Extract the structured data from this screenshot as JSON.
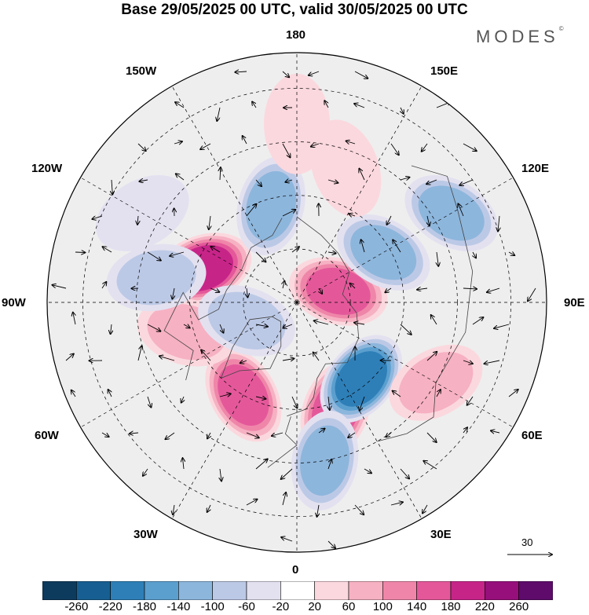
{
  "title": "Base 29/05/2025 00 UTC, valid 30/05/2025 00 UTC",
  "brand": {
    "name": "MODES",
    "mark": "©"
  },
  "map": {
    "projection": "north-polar-stereographic",
    "longitude_labels": {
      "top": "180",
      "top_right": "150E",
      "upper_right": "120E",
      "right": "90E",
      "lower_right": "60E",
      "bottom_right": "30E",
      "bottom": "0",
      "bottom_left": "30W",
      "lower_left": "60W",
      "left": "90W",
      "upper_left": "120W",
      "top_left": "150W"
    },
    "anomaly_centers": [
      {
        "lon": -110,
        "lat": 62,
        "value": 200
      },
      {
        "lon": 105,
        "lat": 78,
        "value": 180
      },
      {
        "lon": -30,
        "lat": 60,
        "value": 160
      },
      {
        "lon": -75,
        "lat": 58,
        "value": 110
      },
      {
        "lon": 20,
        "lat": 58,
        "value": 170
      },
      {
        "lon": 120,
        "lat": 40,
        "value": -120
      },
      {
        "lon": -165,
        "lat": 62,
        "value": -150
      },
      {
        "lon": 120,
        "lat": 62,
        "value": -150
      },
      {
        "lon": 40,
        "lat": 62,
        "value": -200
      },
      {
        "lon": 10,
        "lat": 45,
        "value": -140
      },
      {
        "lon": -70,
        "lat": 75,
        "value": -100
      },
      {
        "lon": -100,
        "lat": 50,
        "value": -80
      },
      {
        "lon": -120,
        "lat": 40,
        "value": -60
      },
      {
        "lon": 160,
        "lat": 50,
        "value": 60
      },
      {
        "lon": 60,
        "lat": 45,
        "value": 80
      },
      {
        "lon": -180,
        "lat": 40,
        "value": 60
      }
    ],
    "reference_vector_value": "30"
  },
  "colorbar": {
    "colors": [
      "#0d3b5e",
      "#175f92",
      "#2e7fb8",
      "#5b9fcf",
      "#8db6dc",
      "#bcc9e6",
      "#e3e1f0",
      "#ffffff",
      "#fbd8de",
      "#f6b1c2",
      "#ef86a9",
      "#e4589a",
      "#c72488",
      "#960f7b",
      "#5e0b6c"
    ],
    "labels": [
      "-260",
      "-220",
      "-180",
      "-140",
      "-100",
      "-60",
      "-20",
      "20",
      "60",
      "100",
      "140",
      "180",
      "220",
      "260"
    ]
  }
}
